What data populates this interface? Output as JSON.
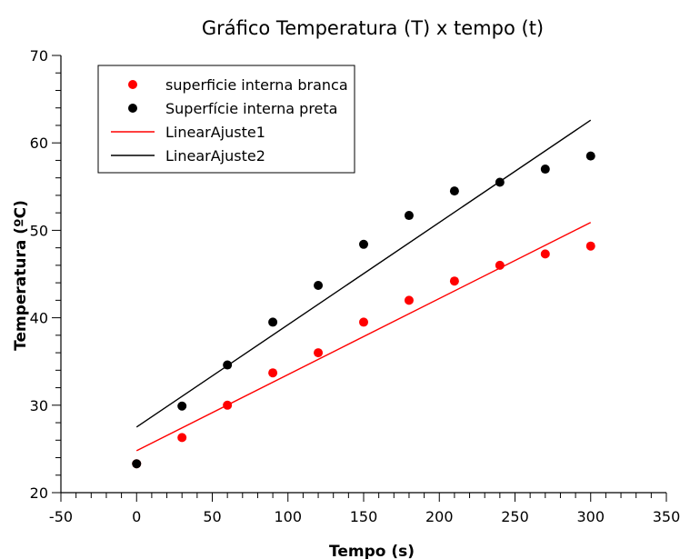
{
  "chart_data": {
    "type": "scatter",
    "title": "Gráfico Temperatura (T) x tempo (t)",
    "xlabel": "Tempo (s)",
    "ylabel": "Temperatura (ºC)",
    "xlim": [
      -50,
      350
    ],
    "ylim": [
      20,
      70
    ],
    "xticks": [
      -50,
      0,
      50,
      100,
      150,
      200,
      250,
      300,
      350
    ],
    "yticks": [
      20,
      30,
      40,
      50,
      60,
      70
    ],
    "grid": false,
    "legend_position": "top-left",
    "series": [
      {
        "name": "superficie interna branca",
        "kind": "scatter",
        "color": "#ff0000",
        "x": [
          0,
          30,
          60,
          90,
          120,
          150,
          180,
          210,
          240,
          270,
          300
        ],
        "y": [
          23.3,
          26.3,
          30.0,
          33.7,
          36.0,
          39.5,
          42.0,
          44.2,
          46.0,
          47.3,
          48.2
        ]
      },
      {
        "name": "Superfície interna preta",
        "kind": "scatter",
        "color": "#000000",
        "x": [
          0,
          30,
          60,
          90,
          120,
          150,
          180,
          210,
          240,
          270,
          300
        ],
        "y": [
          23.3,
          29.9,
          34.6,
          39.5,
          43.7,
          48.4,
          51.7,
          54.5,
          55.5,
          57.0,
          58.5
        ]
      },
      {
        "name": "LinearAjuste1",
        "kind": "line",
        "color": "#ff0000",
        "x": [
          0,
          300
        ],
        "y": [
          24.8,
          50.9
        ]
      },
      {
        "name": "LinearAjuste2",
        "kind": "line",
        "color": "#000000",
        "x": [
          0,
          300
        ],
        "y": [
          27.5,
          62.6
        ]
      }
    ]
  }
}
